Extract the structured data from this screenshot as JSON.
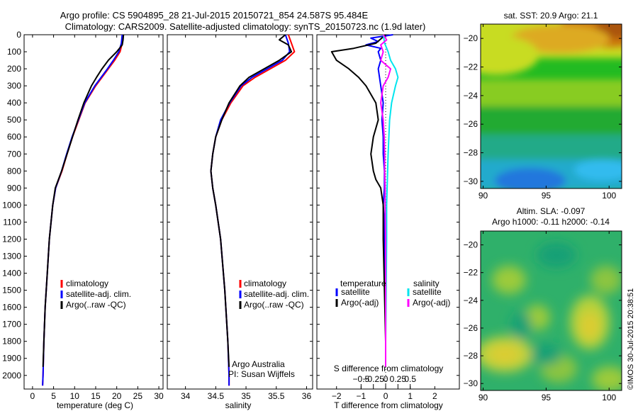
{
  "title_line1": "Argo profile: CS 5904895_28 21-Jul-2015 20150721_854 24.587S 95.484E",
  "title_line2": "Climatology: CARS2009. Satellite-adjusted climatology: synTS_20150723.nc (1.9d later)",
  "colors": {
    "climatology": "#ff0000",
    "satellite": "#0000ff",
    "argo": "#000000",
    "sal_sat": "#00e5ee",
    "sal_argo": "#ff00ff"
  },
  "chart_data": [
    {
      "type": "line",
      "name": "temperature-profile",
      "xlabel": "temperature (deg C)",
      "xlim": [
        -2,
        31
      ],
      "ylim": [
        2080,
        0
      ],
      "xticks": [
        0,
        5,
        10,
        15,
        20,
        25,
        30
      ],
      "yticks": [
        0,
        100,
        200,
        300,
        400,
        500,
        600,
        700,
        800,
        900,
        1000,
        1100,
        1200,
        1300,
        1400,
        1500,
        1600,
        1700,
        1800,
        1900,
        2000
      ],
      "legend": [
        "climatology",
        "satellite-adj. clim.",
        "Argo(..raw -QC)"
      ],
      "series": [
        {
          "name": "climatology",
          "color": "#ff0000",
          "depth": [
            0,
            50,
            100,
            150,
            200,
            300,
            400,
            500,
            600,
            700,
            800,
            900,
            1000,
            1200,
            1400,
            1600,
            1800,
            2000,
            2060
          ],
          "values": [
            21.5,
            21.3,
            20.8,
            19.5,
            18,
            15,
            12.5,
            11,
            9.5,
            8.2,
            7,
            5.5,
            4.8,
            4,
            3.5,
            3,
            2.7,
            2.5,
            2.4
          ]
        },
        {
          "name": "satellite-adj. clim.",
          "color": "#0000ff",
          "depth": [
            0,
            50,
            100,
            150,
            200,
            300,
            400,
            500,
            600,
            700,
            800,
            900,
            1000,
            1200,
            1400,
            1600,
            1800,
            2000,
            2060
          ],
          "values": [
            21.3,
            21.1,
            20.5,
            19.2,
            17.8,
            14.8,
            12.4,
            10.9,
            9.4,
            8.1,
            6.9,
            5.5,
            4.8,
            4,
            3.5,
            3,
            2.7,
            2.5,
            2.4
          ]
        },
        {
          "name": "Argo(..raw -QC)",
          "color": "#000000",
          "depth": [
            0,
            30,
            60,
            100,
            150,
            200,
            250,
            300,
            400,
            500,
            600,
            700,
            800,
            900,
            1000,
            1200,
            1400,
            1600,
            1800,
            1950
          ],
          "values": [
            21.6,
            21.5,
            21.3,
            20,
            18,
            16.5,
            15.2,
            14,
            12.2,
            10.8,
            9.5,
            8.2,
            6.9,
            5.4,
            4.8,
            4,
            3.5,
            3,
            2.7,
            2.5
          ]
        }
      ]
    },
    {
      "type": "line",
      "name": "salinity-profile",
      "xlabel": "salinity",
      "xlim": [
        33.7,
        36.1
      ],
      "ylim": [
        2080,
        0
      ],
      "xticks": [
        34,
        34.5,
        35,
        35.5,
        36
      ],
      "legend": [
        "climatology",
        "satellite-adj. clim.",
        "Argo(..raw -QC)"
      ],
      "series": [
        {
          "name": "climatology",
          "color": "#ff0000",
          "depth": [
            0,
            50,
            100,
            150,
            200,
            250,
            300,
            400,
            500,
            600,
            700,
            800,
            900,
            1000,
            1200,
            1500,
            1800,
            2000,
            2060
          ],
          "values": [
            35.7,
            35.75,
            35.8,
            35.65,
            35.4,
            35.15,
            34.95,
            34.75,
            34.6,
            34.5,
            34.45,
            34.42,
            34.45,
            34.5,
            34.58,
            34.65,
            34.7,
            34.72,
            34.72
          ]
        },
        {
          "name": "satellite-adj. clim.",
          "color": "#0000ff",
          "depth": [
            0,
            50,
            100,
            150,
            200,
            250,
            300,
            400,
            500,
            600,
            700,
            800,
            900,
            1000,
            1200,
            1500,
            1800,
            2000,
            2060
          ],
          "values": [
            35.65,
            35.7,
            35.72,
            35.6,
            35.35,
            35.1,
            34.92,
            34.73,
            34.58,
            34.5,
            34.45,
            34.42,
            34.45,
            34.5,
            34.58,
            34.65,
            34.7,
            34.72,
            34.72
          ]
        },
        {
          "name": "Argo(..raw -QC)",
          "color": "#000000",
          "depth": [
            0,
            30,
            60,
            100,
            150,
            200,
            250,
            300,
            400,
            500,
            600,
            700,
            800,
            900,
            1000,
            1200,
            1500,
            1800,
            1950
          ],
          "values": [
            35.65,
            35.55,
            35.7,
            35.75,
            35.55,
            35.3,
            35.05,
            34.9,
            34.72,
            34.6,
            34.5,
            34.45,
            34.42,
            34.45,
            34.5,
            34.58,
            34.65,
            34.7,
            34.72
          ]
        }
      ],
      "annotation": [
        "Argo Australia",
        "PI: Susan Wijffels"
      ]
    },
    {
      "type": "line",
      "name": "difference-profile",
      "xlabel": "T difference from climatology",
      "xlabel2": "S difference from climatology",
      "xlim": [
        -2.8,
        3
      ],
      "ylim": [
        2080,
        0
      ],
      "xticks": [
        -2,
        -1,
        0,
        1,
        2
      ],
      "sticks": [
        -0.5,
        -0.25,
        0,
        0.25,
        0.5
      ],
      "legend_headers": [
        "temperature",
        "salinity"
      ],
      "legend": [
        "satellite",
        "Argo(-adj)",
        "satellite",
        "Argo(-adj)"
      ],
      "series": [
        {
          "name": "T satellite",
          "color": "#0000ff",
          "depth": [
            0,
            20,
            40,
            60,
            80,
            100,
            150,
            200,
            300,
            400,
            500,
            600,
            700,
            800,
            900,
            1000,
            1100,
            1200,
            1500,
            1800,
            1950
          ],
          "values": [
            0.3,
            -0.6,
            -0.3,
            -0.8,
            -0.2,
            -0.3,
            -0.2,
            -0.3,
            -0.2,
            -0.1,
            -0.15,
            -0.1,
            -0.1,
            -0.05,
            -0.05,
            -0.1,
            -0.05,
            -0.05,
            0,
            0,
            0
          ]
        },
        {
          "name": "T Argo(-adj)",
          "color": "#000000",
          "depth": [
            0,
            50,
            80,
            100,
            150,
            200,
            250,
            300,
            400,
            500,
            600,
            700,
            800,
            850,
            900,
            1000,
            1200,
            1500,
            1800,
            1950
          ],
          "values": [
            0,
            -0.4,
            -1.3,
            -2.2,
            -2,
            -1.5,
            -1.1,
            -0.8,
            -0.4,
            -0.3,
            -0.5,
            -0.6,
            -0.5,
            -0.4,
            -0.2,
            -0.1,
            -0.1,
            -0.05,
            0,
            0
          ]
        },
        {
          "name": "S satellite",
          "color": "#00e5ee",
          "depth": [
            0,
            50,
            100,
            150,
            200,
            250,
            300,
            400,
            500,
            700,
            900,
            1000,
            1200,
            1500,
            1800,
            1950
          ],
          "values": [
            -0.05,
            -0.02,
            0.05,
            0.1,
            0.2,
            0.25,
            0.2,
            0.12,
            0.08,
            0.05,
            0.03,
            0.02,
            0.02,
            0.01,
            0,
            0
          ]
        },
        {
          "name": "S Argo(-adj)",
          "color": "#ff00ff",
          "depth": [
            0,
            30,
            60,
            100,
            150,
            200,
            250,
            300,
            400,
            500,
            600,
            700,
            800,
            900,
            1000,
            1200,
            1500,
            1800,
            1950
          ],
          "values": [
            -0.05,
            0.02,
            -0.1,
            -0.05,
            -0.1,
            0.1,
            0.05,
            -0.05,
            -0.1,
            -0.05,
            -0.03,
            -0.02,
            -0.02,
            -0.01,
            -0.01,
            0,
            0,
            0,
            0
          ]
        }
      ]
    },
    {
      "type": "heatmap",
      "name": "sst-map",
      "title": "sat. SST: 20.9 Argo: 21.1",
      "xlim": [
        89.8,
        101
      ],
      "ylim": [
        -30.5,
        -19
      ],
      "xticks": [
        90,
        95,
        100
      ],
      "yticks": [
        -20,
        -22,
        -24,
        -26,
        -28,
        -30
      ]
    },
    {
      "type": "heatmap",
      "name": "sla-map",
      "title_line1": "Altim. SLA: -0.097",
      "title_line2": "Argo h1000: -0.11 h2000: -0.14",
      "xlim": [
        89.8,
        101
      ],
      "ylim": [
        -30.5,
        -19
      ],
      "xticks": [
        90,
        95,
        100
      ],
      "yticks": [
        -20,
        -22,
        -24,
        -26,
        -28,
        -30
      ]
    }
  ],
  "watermark": "©IMOS 30-Jul-2015 20:38:51"
}
